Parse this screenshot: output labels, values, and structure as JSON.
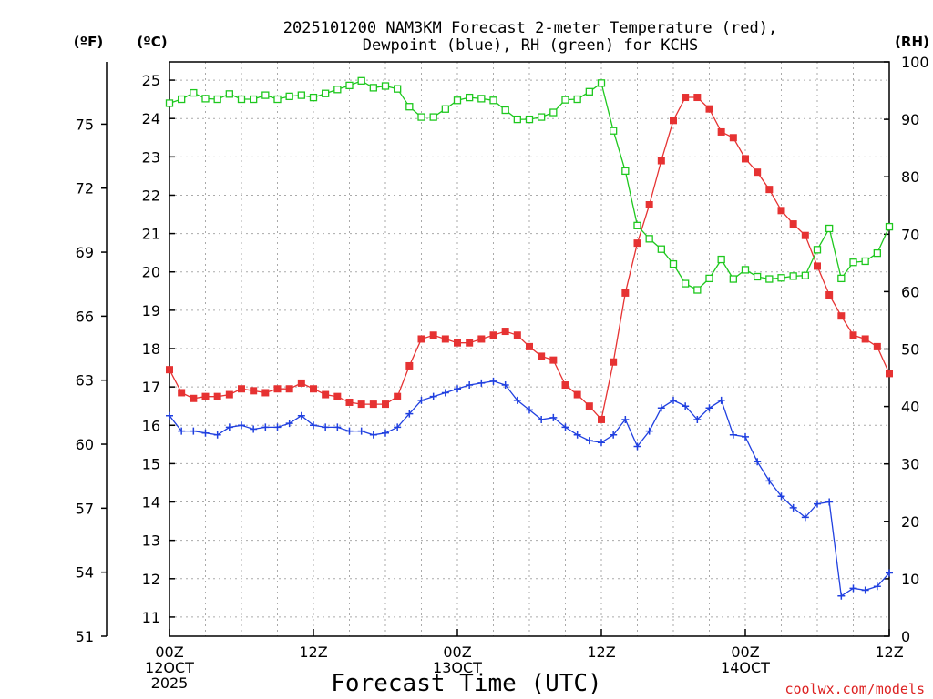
{
  "chart_data": {
    "type": "line",
    "title_line1": "2025101200 NAM3KM Forecast 2-meter Temperature (red),",
    "title_line2": "Dewpoint (blue), RH (green) for KCHS",
    "xlabel": "Forecast Time (UTC)",
    "credit": "coolwx.com/models",
    "unit_f": "(ºF)",
    "unit_c": "(ºC)",
    "unit_rh": "(RH)",
    "x_range_hours": [
      0,
      60
    ],
    "x_ticks": [
      {
        "hour": 0,
        "lines": [
          "00Z",
          "12OCT",
          "2025"
        ]
      },
      {
        "hour": 12,
        "lines": [
          "12Z"
        ]
      },
      {
        "hour": 24,
        "lines": [
          "00Z",
          "13OCT"
        ]
      },
      {
        "hour": 36,
        "lines": [
          "12Z"
        ]
      },
      {
        "hour": 48,
        "lines": [
          "00Z",
          "14OCT"
        ]
      },
      {
        "hour": 60,
        "lines": [
          "12Z"
        ]
      }
    ],
    "c_range": [
      10.5,
      25.5
    ],
    "c_ticks": [
      "11",
      "12",
      "13",
      "14",
      "15",
      "16",
      "17",
      "18",
      "19",
      "20",
      "21",
      "22",
      "23",
      "24",
      "25"
    ],
    "f_range": [
      51,
      78.9
    ],
    "f_ticks": [
      "51",
      "54",
      "57",
      "60",
      "63",
      "66",
      "69",
      "72",
      "75"
    ],
    "rh_range": [
      0,
      100
    ],
    "rh_ticks": [
      "0",
      "10",
      "20",
      "30",
      "40",
      "50",
      "60",
      "70",
      "80",
      "90",
      "100"
    ],
    "series": [
      {
        "name": "2-meter Temperature",
        "unit": "C",
        "color": "#e63232",
        "marker": "filled-square",
        "values": [
          17.45,
          16.85,
          16.7,
          16.75,
          16.75,
          16.8,
          16.95,
          16.9,
          16.85,
          16.95,
          16.95,
          17.1,
          16.95,
          16.8,
          16.75,
          16.6,
          16.55,
          16.55,
          16.55,
          16.75,
          17.55,
          18.25,
          18.35,
          18.25,
          18.15,
          18.15,
          18.25,
          18.35,
          18.45,
          18.35,
          18.05,
          17.8,
          17.7,
          17.05,
          16.8,
          16.5,
          16.15,
          17.65,
          19.45,
          20.75,
          21.75,
          22.9,
          23.95,
          24.55,
          24.55,
          24.25,
          23.65,
          23.5,
          22.95,
          22.6,
          22.15,
          21.6,
          21.25,
          20.95,
          20.15,
          19.4,
          18.85,
          18.35,
          18.25,
          18.05,
          17.35
        ]
      },
      {
        "name": "Dewpoint",
        "unit": "C",
        "color": "#2040e0",
        "marker": "plus",
        "values": [
          16.25,
          15.85,
          15.85,
          15.8,
          15.75,
          15.95,
          16.0,
          15.9,
          15.95,
          15.95,
          16.05,
          16.25,
          16.0,
          15.95,
          15.95,
          15.85,
          15.85,
          15.75,
          15.8,
          15.95,
          16.3,
          16.65,
          16.75,
          16.85,
          16.95,
          17.05,
          17.1,
          17.15,
          17.05,
          16.65,
          16.4,
          16.15,
          16.2,
          15.95,
          15.75,
          15.6,
          15.55,
          15.75,
          16.15,
          15.45,
          15.85,
          16.45,
          16.65,
          16.5,
          16.15,
          16.45,
          16.65,
          15.75,
          15.7,
          15.05,
          14.55,
          14.15,
          13.85,
          13.6,
          13.95,
          14.0,
          11.55,
          11.75,
          11.7,
          11.8,
          12.15
        ]
      },
      {
        "name": "RH",
        "unit": "%",
        "color": "#1ec81e",
        "marker": "open-square",
        "values": [
          92.8,
          93.5,
          94.6,
          93.6,
          93.5,
          94.4,
          93.5,
          93.5,
          94.2,
          93.5,
          94.0,
          94.2,
          93.8,
          94.5,
          95.2,
          95.9,
          96.7,
          95.5,
          95.8,
          95.3,
          92.2,
          90.4,
          90.4,
          91.8,
          93.3,
          93.8,
          93.6,
          93.3,
          91.6,
          90.0,
          90.0,
          90.4,
          91.2,
          93.4,
          93.5,
          94.8,
          96.3,
          88.0,
          81.0,
          71.5,
          69.2,
          67.4,
          64.8,
          61.4,
          60.3,
          62.3,
          65.6,
          62.2,
          63.8,
          62.6,
          62.2,
          62.4,
          62.7,
          62.8,
          67.3,
          71.0,
          62.3,
          65.1,
          65.3,
          66.7,
          71.3
        ]
      }
    ]
  }
}
